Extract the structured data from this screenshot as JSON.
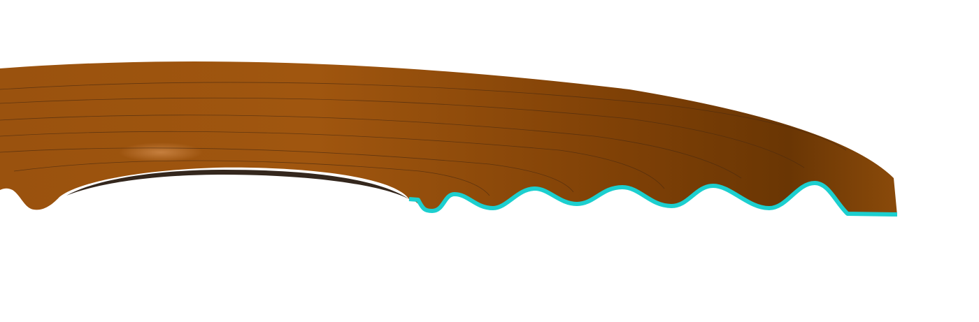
{
  "scene": {
    "subject": "corrugated-disc-section",
    "colors": {
      "background": "#ffffff",
      "body_light": "#a35a12",
      "body_mid": "#8a4a0a",
      "body_dark": "#6a3604",
      "highlight": "#c07a3a",
      "hole_shadow": "#1e1004",
      "section_outline": "#1ccfcf",
      "groove_line": "#4a2a10"
    }
  }
}
